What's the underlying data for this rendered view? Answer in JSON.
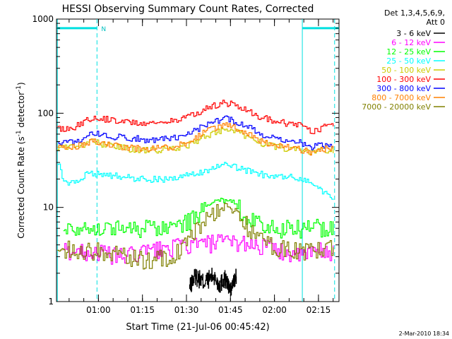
{
  "chart_data": {
    "type": "line",
    "title": "HESSI Observing Summary Count Rates, Corrected",
    "xlabel": "Start Time (21-Jul-06 00:45:42)",
    "ylabel_main": "Corrected Count Rate (s",
    "ylabel_sup1": "-1",
    "ylabel_mid": " detector",
    "ylabel_sup2": "-1",
    "ylabel_end": ")",
    "yscale": "log",
    "ylim": [
      1,
      1000
    ],
    "xlim_minutes": [
      45.7,
      142
    ],
    "y_ticks": [
      "1",
      "10",
      "100",
      "1000"
    ],
    "x_ticks": [
      {
        "label": "01:00",
        "t": 60
      },
      {
        "label": "01:15",
        "t": 75
      },
      {
        "label": "01:30",
        "t": 90
      },
      {
        "label": "01:45",
        "t": 105
      },
      {
        "label": "02:00",
        "t": 120
      },
      {
        "label": "02:15",
        "t": 135
      }
    ],
    "legend_header": [
      "Det 1,3,4,5,6,9,",
      "Att 0"
    ],
    "legend_position": "right",
    "annotations": {
      "night_flag": "N",
      "night_intervals": [
        [
          45.7,
          59.5
        ],
        [
          129.5,
          142
        ]
      ],
      "saa_dashed_lines": [
        59.5,
        140.5
      ],
      "solid_lines": [
        46.0,
        129.5
      ]
    },
    "series": [
      {
        "name": "3 - 6 keV",
        "color": "#000000",
        "x": [
          91,
          93,
          96,
          99,
          101,
          103,
          105,
          107
        ],
        "y": [
          1.4,
          1.9,
          1.6,
          1.9,
          1.5,
          1.8,
          1.3,
          1.9
        ]
      },
      {
        "name": "6 - 12 keV",
        "color": "#ff00ff",
        "x": [
          48,
          58,
          68,
          78,
          88,
          98,
          108,
          118,
          128,
          135,
          140
        ],
        "y": [
          3.5,
          3.4,
          3.0,
          3.5,
          3.9,
          4.2,
          4.3,
          3.8,
          3.0,
          3.5,
          3.4
        ]
      },
      {
        "name": "12 - 25 keV",
        "color": "#00ff00",
        "x": [
          48,
          55,
          62,
          70,
          78,
          84,
          90,
          95,
          100,
          103,
          106,
          110,
          115,
          120,
          128,
          135,
          140
        ],
        "y": [
          6.0,
          6.3,
          6.0,
          6.2,
          6.0,
          6.2,
          7.0,
          9.0,
          11.5,
          12.0,
          11.0,
          8.5,
          6.5,
          6.0,
          6.0,
          6.2,
          6.0
        ]
      },
      {
        "name": "25 - 50 keV",
        "color": "#00ffff",
        "x": [
          46,
          48,
          51,
          55,
          60,
          68,
          75,
          82,
          88,
          94,
          98,
          103,
          108,
          114,
          120,
          126,
          129,
          133,
          137,
          140
        ],
        "y": [
          30,
          19,
          18,
          22,
          23,
          21,
          20,
          20,
          21,
          23,
          26,
          28,
          26,
          23,
          21,
          21,
          20,
          18,
          14,
          13
        ]
      },
      {
        "name": "50 - 100 keV",
        "color": "#cccc00",
        "x": [
          46,
          52,
          58,
          64,
          70,
          78,
          86,
          92,
          98,
          103,
          108,
          114,
          120,
          128,
          133,
          136,
          140
        ],
        "y": [
          44,
          44,
          50,
          45,
          42,
          40,
          42,
          48,
          60,
          68,
          62,
          50,
          44,
          40,
          38,
          42,
          40
        ]
      },
      {
        "name": "100 - 300 keV",
        "color": "#ff0000",
        "x": [
          46,
          52,
          58,
          64,
          70,
          78,
          86,
          92,
          98,
          103,
          108,
          114,
          120,
          128,
          133,
          137,
          140
        ],
        "y": [
          68,
          72,
          92,
          85,
          80,
          78,
          84,
          95,
          118,
          130,
          118,
          95,
          82,
          75,
          64,
          72,
          78
        ]
      },
      {
        "name": "300 - 800 keV",
        "color": "#0000ff",
        "x": [
          46,
          52,
          58,
          64,
          70,
          78,
          86,
          92,
          98,
          103,
          108,
          114,
          120,
          128,
          133,
          137,
          140
        ],
        "y": [
          48,
          50,
          62,
          57,
          55,
          52,
          55,
          63,
          80,
          88,
          80,
          63,
          53,
          50,
          44,
          46,
          47
        ]
      },
      {
        "name": "800 - 7000 keV",
        "color": "#ff8000",
        "x": [
          46,
          52,
          58,
          64,
          70,
          78,
          86,
          92,
          98,
          103,
          108,
          114,
          120,
          128,
          133,
          137,
          140
        ],
        "y": [
          43,
          44,
          50,
          46,
          43,
          42,
          44,
          52,
          68,
          75,
          68,
          53,
          45,
          42,
          38,
          42,
          43
        ]
      },
      {
        "name": "7000 - 20000 keV",
        "color": "#808000",
        "x": [
          46,
          52,
          58,
          64,
          70,
          76,
          82,
          88,
          92,
          96,
          100,
          104,
          108,
          112,
          118,
          124,
          130,
          136,
          140
        ],
        "y": [
          3.6,
          3.6,
          3.5,
          3.3,
          3.0,
          2.8,
          2.9,
          3.5,
          5.0,
          7.5,
          9.5,
          10.0,
          8.0,
          5.5,
          4.0,
          3.6,
          3.4,
          3.6,
          3.8
        ]
      }
    ]
  },
  "footer": {
    "date": "2-Mar-2010 18:34"
  }
}
